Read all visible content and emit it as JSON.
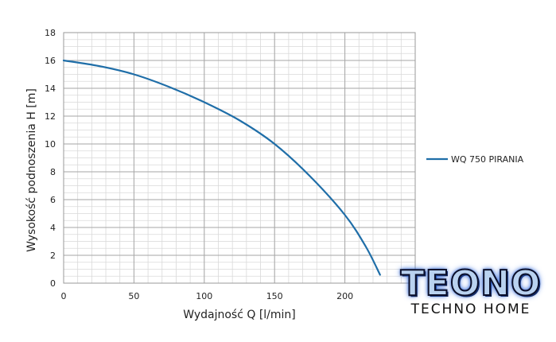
{
  "chart_data": {
    "type": "line",
    "title": "",
    "xlabel": "Wydajność Q [l/min]",
    "ylabel": "Wysokość podnoszenia H [m]",
    "xlim": [
      0,
      250
    ],
    "ylim": [
      0,
      18
    ],
    "x_ticks": [
      0,
      50,
      100,
      150,
      200
    ],
    "y_ticks": [
      0,
      2,
      4,
      6,
      8,
      10,
      12,
      14,
      16,
      18
    ],
    "grid": true,
    "legend_position": "right",
    "series": [
      {
        "name": "WQ 750 PIRANIA",
        "color": "#1f6ea8",
        "x": [
          0,
          25,
          50,
          75,
          100,
          125,
          150,
          175,
          200,
          215,
          225
        ],
        "y": [
          16,
          15.6,
          15,
          14.1,
          13,
          11.7,
          10,
          7.7,
          4.9,
          2.6,
          0.6
        ]
      }
    ]
  },
  "logo": {
    "wordmark": "TEONO",
    "subtitle": "TECHNO HOME"
  }
}
